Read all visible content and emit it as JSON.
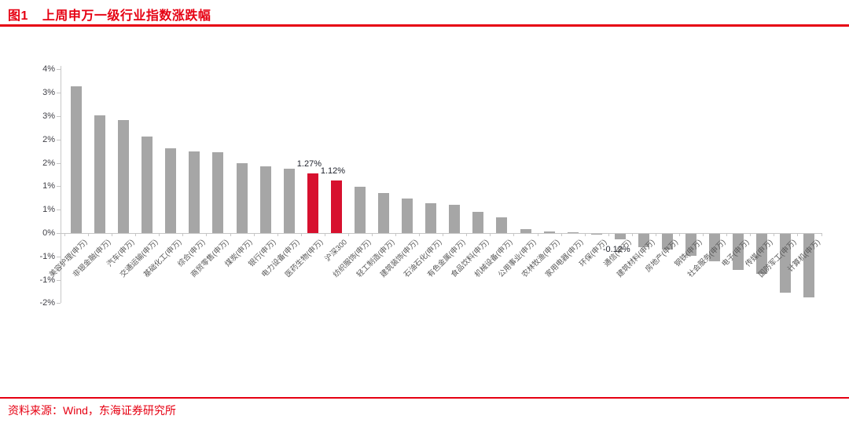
{
  "header": {
    "figure_label": "图1",
    "title": "上周申万一级行业指数涨跌幅"
  },
  "footer": {
    "source": "资料来源：Wind，东海证券研究所"
  },
  "colors": {
    "accent_red": "#e60012",
    "bar_gray": "#a6a6a6",
    "bar_highlight_red": "#d7102e",
    "axis_gray": "#c6c6c6"
  },
  "chart_data": {
    "type": "bar",
    "title": "上周申万一级行业指数涨跌幅",
    "xlabel": "",
    "ylabel": "",
    "grid": false,
    "legend": "none",
    "categories": [
      "美容护理(申万)",
      "非银金融(申万)",
      "汽车(申万)",
      "交通运输(申万)",
      "基础化工(申万)",
      "综合(申万)",
      "商贸零售(申万)",
      "煤炭(申万)",
      "银行(申万)",
      "电力设备(申万)",
      "医药生物(申万)",
      "沪深300",
      "纺织服饰(申万)",
      "轻工制造(申万)",
      "建筑装饰(申万)",
      "石油石化(申万)",
      "有色金属(申万)",
      "食品饮料(申万)",
      "机械设备(申万)",
      "公用事业(申万)",
      "农林牧渔(申万)",
      "家用电器(申万)",
      "环保(申万)",
      "通信(申万)",
      "建筑材料(申万)",
      "房地产(申万)",
      "钢铁(申万)",
      "社会服务(申万)",
      "电子(申万)",
      "传媒(申万)",
      "国防军工(申万)",
      "计算机(申万)"
    ],
    "values": [
      3.13,
      2.52,
      2.42,
      2.07,
      1.82,
      1.74,
      1.73,
      1.5,
      1.43,
      1.38,
      1.27,
      1.12,
      0.99,
      0.85,
      0.74,
      0.63,
      0.6,
      0.45,
      0.33,
      0.08,
      0.04,
      0.02,
      -0.02,
      -0.12,
      -0.28,
      -0.34,
      -0.47,
      -0.59,
      -0.78,
      -0.85,
      -1.26,
      -1.36
    ],
    "highlight_indices": [
      10,
      11
    ],
    "data_labels": [
      {
        "index": 10,
        "text": "1.27%"
      },
      {
        "index": 11,
        "text": "1.12%"
      },
      {
        "index": 23,
        "text": "-0.12%"
      }
    ],
    "y_axis": {
      "min": -1.5,
      "max": 3.5,
      "step": 0.5,
      "ticks": [
        {
          "value": 3.5,
          "label": "4%"
        },
        {
          "value": 3.0,
          "label": "3%"
        },
        {
          "value": 2.5,
          "label": "3%"
        },
        {
          "value": 2.0,
          "label": "2%"
        },
        {
          "value": 1.5,
          "label": "2%"
        },
        {
          "value": 1.0,
          "label": "1%"
        },
        {
          "value": 0.5,
          "label": "1%"
        },
        {
          "value": 0.0,
          "label": "0%"
        },
        {
          "value": -0.5,
          "label": "-1%"
        },
        {
          "value": -1.0,
          "label": "-1%"
        },
        {
          "value": -1.5,
          "label": "-2%"
        }
      ]
    }
  }
}
